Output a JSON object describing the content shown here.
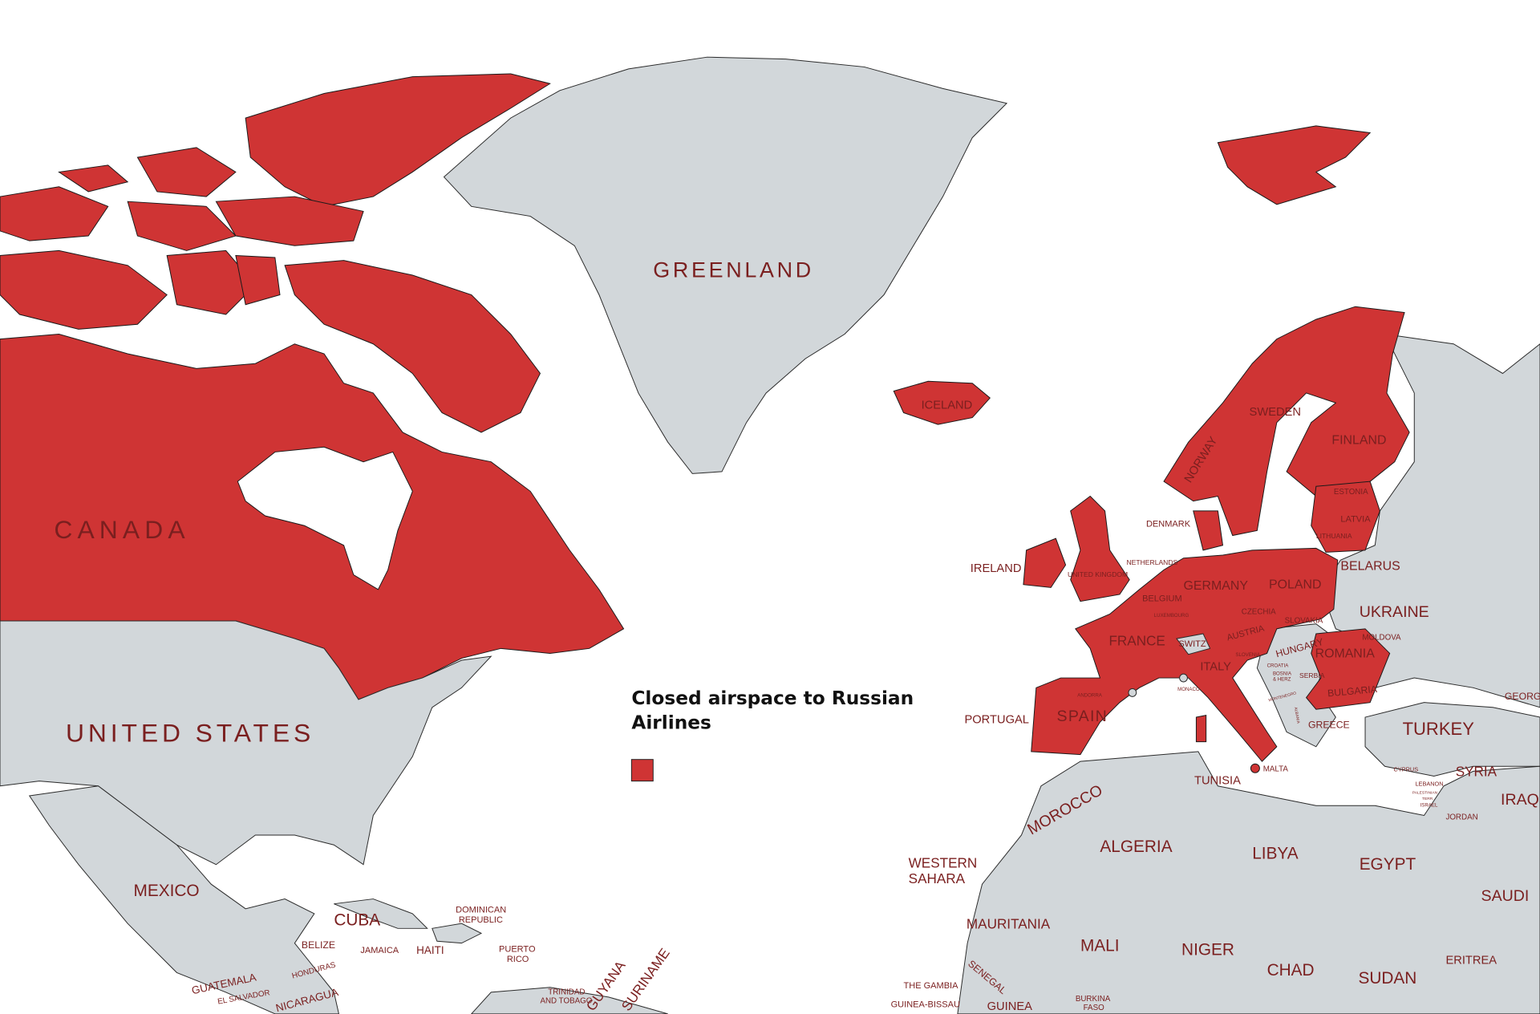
{
  "colors": {
    "closed": "#cf3434",
    "open": "#d2d7da",
    "label": "#7a1f1f",
    "water": "#ffffff"
  },
  "legend": {
    "title_line1": "Closed airspace to Russian",
    "title_line2": "Airlines",
    "swatch_color": "#cf3434"
  },
  "labels": {
    "greenland": "GREENLAND",
    "canada": "CANADA",
    "united_states": "UNITED STATES",
    "iceland": "ICELAND",
    "sweden": "SWEDEN",
    "finland": "FINLAND",
    "norway": "NORWAY",
    "estonia": "ESTONIA",
    "latvia": "LATVIA",
    "lithuania": "LITHUANIA",
    "denmark": "DENMARK",
    "netherlands": "NETHERLANDS",
    "ireland": "IRELAND",
    "united_kingdom": "UNITED KINGDOM",
    "belarus": "BELARUS",
    "germany": "GERMANY",
    "poland": "POLAND",
    "belgium": "BELGIUM",
    "luxembourg": "LUXEMBOURG",
    "czechia": "CZECHIA",
    "slovakia": "SLOVAKIA",
    "ukraine": "UKRAINE",
    "france": "FRANCE",
    "switz": "SWITZ",
    "austria": "AUSTRIA",
    "hungary": "HUNGARY",
    "moldova": "MOLDOVA",
    "romania": "ROMANIA",
    "slovenia": "SLOVENIA",
    "croatia": "CROATIA",
    "italy": "ITALY",
    "bosnia": "BOSNIA",
    "bosnia2": "& HERZ",
    "serbia": "SERBIA",
    "monaco": "MONACO",
    "bulgaria": "BULGARIA",
    "andorra": "ANDORRA",
    "montenegro": "MONTENEGRO",
    "albania": "ALBANIA",
    "spain": "SPAIN",
    "portugal": "PORTUGAL",
    "greece": "GREECE",
    "turkey": "TURKEY",
    "georgia": "GEORGIA",
    "malta": "MALTA",
    "cyprus": "CYPRUS",
    "syria": "SYRIA",
    "lebanon": "LEBANON",
    "palestinian": "PALESTINIAN",
    "palestinian2": "TERR.",
    "israel": "ISRAEL",
    "iraq": "IRAQ",
    "jordan": "JORDAN",
    "tunisia": "TUNISIA",
    "morocco": "MOROCCO",
    "algeria": "ALGERIA",
    "libya": "LIBYA",
    "egypt": "EGYPT",
    "western_sahara1": "WESTERN",
    "western_sahara2": "SAHARA",
    "saudi": "SAUDI",
    "mauritania": "MAURITANIA",
    "mali": "MALI",
    "niger": "NIGER",
    "chad": "CHAD",
    "sudan": "SUDAN",
    "eritrea": "ERITREA",
    "the_gambia": "THE GAMBIA",
    "senegal": "SENEGAL",
    "guinea_bissau": "GUINEA-BISSAU",
    "guinea": "GUINEA",
    "burkina1": "BURKINA",
    "burkina2": "FASO",
    "mexico": "MEXICO",
    "cuba": "CUBA",
    "dominican1": "DOMINICAN",
    "dominican2": "REPUBLIC",
    "belize": "BELIZE",
    "jamaica": "JAMAICA",
    "haiti": "HAITI",
    "puerto1": "PUERTO",
    "puerto2": "RICO",
    "honduras": "HONDURAS",
    "guatemala": "GUATEMALA",
    "el_salvador": "EL SALVADOR",
    "nicaragua": "NICARAGUA",
    "trinidad1": "TRINIDAD",
    "trinidad2": "AND TOBAGO",
    "guyana": "GUYANA",
    "suriname": "SURINAME"
  }
}
